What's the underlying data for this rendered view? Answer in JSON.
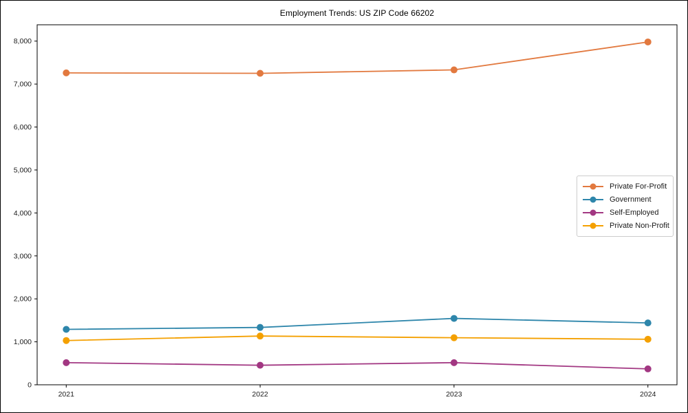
{
  "window": {
    "background": "#ffffff",
    "frame_color": "#000000"
  },
  "chart_data": {
    "type": "line",
    "title": "Employment Trends: US ZIP Code 66202",
    "xlabel": "",
    "ylabel": "",
    "x": [
      2021,
      2022,
      2023,
      2024
    ],
    "x_tick_labels": [
      "2021",
      "2022",
      "2023",
      "2024"
    ],
    "y_ticks": [
      0,
      1000,
      2000,
      3000,
      4000,
      5000,
      6000,
      7000,
      8000
    ],
    "y_tick_labels": [
      "0",
      "1,000",
      "2,000",
      "3,000",
      "4,000",
      "5,000",
      "6,000",
      "7,000",
      "8,000"
    ],
    "xlim": [
      2020.85,
      2024.15
    ],
    "ylim": [
      0,
      8380
    ],
    "grid": false,
    "legend_position": "center-right",
    "marker": "circle",
    "series": [
      {
        "name": "Private For-Profit",
        "color": "#E2793F",
        "values": [
          7260,
          7250,
          7330,
          7980
        ]
      },
      {
        "name": "Government",
        "color": "#2E86AB",
        "values": [
          1290,
          1335,
          1545,
          1440
        ]
      },
      {
        "name": "Self-Employed",
        "color": "#A23782",
        "values": [
          515,
          455,
          515,
          370
        ]
      },
      {
        "name": "Private Non-Profit",
        "color": "#F4A000",
        "values": [
          1030,
          1135,
          1095,
          1060
        ]
      }
    ]
  }
}
